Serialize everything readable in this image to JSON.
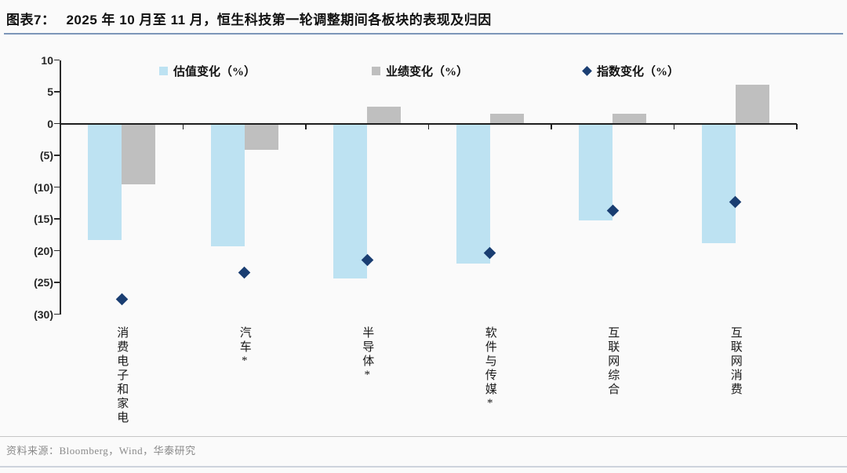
{
  "figure": {
    "label": "图表7：",
    "title": "2025 年 10 月至 11 月，恒生科技第一轮调整期间各板块的表现及归因"
  },
  "source": "资料来源：Bloomberg，Wind，华泰研究",
  "colors": {
    "valuation_bar": "#BDE2F2",
    "earnings_bar": "#BFBFBF",
    "index_diamond": "#1A3E72",
    "title_rule": "#7C96B8",
    "background": "#FAFAFA"
  },
  "chart_data": {
    "type": "bar",
    "title": "",
    "xlabel": "",
    "ylabel": "",
    "ylim": [
      -30,
      10
    ],
    "grid": false,
    "legend_position": "top",
    "categories": [
      "消费电子和家电",
      "汽车*",
      "半导体*",
      "软件与传媒*",
      "互联网综合",
      "互联网消费"
    ],
    "yticks": [
      {
        "value": 10,
        "label": "10"
      },
      {
        "value": 5,
        "label": "5"
      },
      {
        "value": 0,
        "label": "0"
      },
      {
        "value": -5,
        "label": "(5)"
      },
      {
        "value": -10,
        "label": "(10)"
      },
      {
        "value": -15,
        "label": "(15)"
      },
      {
        "value": -20,
        "label": "(20)"
      },
      {
        "value": -25,
        "label": "(25)"
      },
      {
        "value": -30,
        "label": "(30)"
      }
    ],
    "series": [
      {
        "name": "估值变化（%）",
        "type": "bar",
        "marker": "square",
        "color": "#BDE2F2",
        "values": [
          -18.2,
          -19.2,
          -24.2,
          -21.9,
          -15.1,
          -18.7
        ]
      },
      {
        "name": "业绩变化（%）",
        "type": "bar",
        "marker": "square",
        "color": "#BFBFBF",
        "values": [
          -9.4,
          -4.0,
          2.7,
          1.6,
          1.5,
          6.1
        ]
      },
      {
        "name": "指数变化（%）",
        "type": "scatter",
        "marker": "diamond",
        "color": "#1A3E72",
        "values": [
          -27.7,
          -23.4,
          -21.5,
          -20.4,
          -13.7,
          -12.4
        ]
      }
    ]
  }
}
